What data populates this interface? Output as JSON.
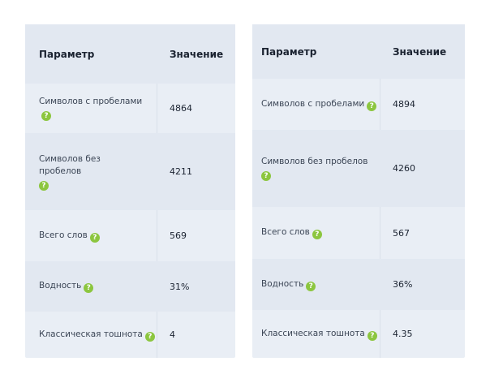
{
  "tables": [
    {
      "header": {
        "param": "Параметр",
        "value": "Значение"
      },
      "rows": [
        {
          "param": "Символов с пробелами",
          "value": "4864"
        },
        {
          "param": "Символов без пробелов",
          "value": "4211"
        },
        {
          "param": "Всего слов",
          "value": "569"
        },
        {
          "param": "Водность",
          "value": "31%"
        },
        {
          "param": "Классическая тошнота",
          "value": "4"
        }
      ]
    },
    {
      "header": {
        "param": "Параметр",
        "value": "Значение"
      },
      "rows": [
        {
          "param": "Символов с пробелами",
          "value": "4894"
        },
        {
          "param": "Символов без пробелов",
          "value": "4260"
        },
        {
          "param": "Всего слов",
          "value": "567"
        },
        {
          "param": "Водность",
          "value": "36%"
        },
        {
          "param": "Классическая тошнота",
          "value": "4.35"
        }
      ]
    }
  ],
  "icons": {
    "help": "?"
  },
  "colors": {
    "accent_icon": "#8cc63f"
  }
}
